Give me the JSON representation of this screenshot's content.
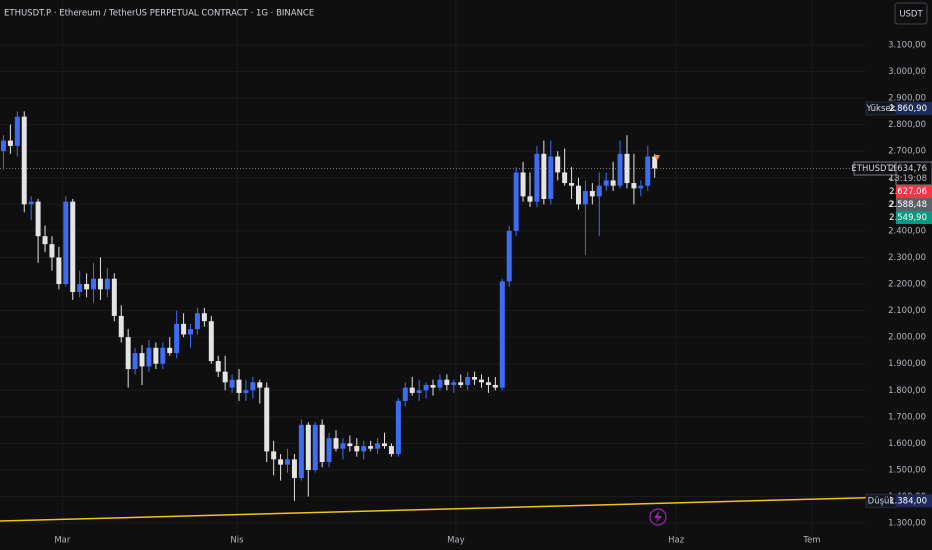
{
  "header": {
    "symbol_title": "ETHUSDT.P · Ethereum / TetherUS PERPETUAL CONTRACT · 1G · BINANCE",
    "currency_button": "USDT"
  },
  "chart_data": {
    "type": "candlestick",
    "up_color": "#3d6df2",
    "down_color": "#e4e4e4",
    "xlim": [
      -0.5,
      124.5
    ],
    "xticks": [
      {
        "value": 8.5,
        "label": "Mar"
      },
      {
        "value": 33.7,
        "label": "Nis"
      },
      {
        "value": 65.3,
        "label": "May"
      },
      {
        "value": 97.1,
        "label": "Haz"
      },
      {
        "value": 116.7,
        "label": "Tem"
      }
    ],
    "ylim": [
      1244,
      3269
    ],
    "yticks": [
      {
        "value": 1300,
        "label": "1.300,00"
      },
      {
        "value": 1400,
        "label": "1.400,00"
      },
      {
        "value": 1500,
        "label": "1.500,00"
      },
      {
        "value": 1600,
        "label": "1.600,00"
      },
      {
        "value": 1700,
        "label": "1.700,00"
      },
      {
        "value": 1800,
        "label": "1.800,00"
      },
      {
        "value": 1900,
        "label": "1.900,00"
      },
      {
        "value": 2000,
        "label": "2.000,00"
      },
      {
        "value": 2100,
        "label": "2.100,00"
      },
      {
        "value": 2200,
        "label": "2.200,00"
      },
      {
        "value": 2300,
        "label": "2.300,00"
      },
      {
        "value": 2400,
        "label": "2.400,00"
      },
      {
        "value": 2500,
        "label": "2.500,00"
      },
      {
        "value": 2600,
        "label": "2.600,00"
      },
      {
        "value": 2700,
        "label": "2.700,00"
      },
      {
        "value": 2800,
        "label": "2.800,00"
      },
      {
        "value": 2900,
        "label": "2.900,00"
      },
      {
        "value": 3000,
        "label": "3.000,00"
      },
      {
        "value": 3100,
        "label": "3.100,00"
      }
    ],
    "grid": true,
    "candles": [
      {
        "open": 2700,
        "high": 2760,
        "low": 2630,
        "close": 2740
      },
      {
        "open": 2740,
        "high": 2800,
        "low": 2690,
        "close": 2720
      },
      {
        "open": 2720,
        "high": 2850,
        "low": 2680,
        "close": 2830
      },
      {
        "open": 2830,
        "high": 2850,
        "low": 2470,
        "close": 2500
      },
      {
        "open": 2500,
        "high": 2530,
        "low": 2440,
        "close": 2510
      },
      {
        "open": 2510,
        "high": 2520,
        "low": 2280,
        "close": 2380
      },
      {
        "open": 2380,
        "high": 2420,
        "low": 2320,
        "close": 2350
      },
      {
        "open": 2350,
        "high": 2380,
        "low": 2250,
        "close": 2300
      },
      {
        "open": 2300,
        "high": 2340,
        "low": 2180,
        "close": 2200
      },
      {
        "open": 2200,
        "high": 2530,
        "low": 2190,
        "close": 2510
      },
      {
        "open": 2510,
        "high": 2520,
        "low": 2140,
        "close": 2170
      },
      {
        "open": 2170,
        "high": 2250,
        "low": 2150,
        "close": 2200
      },
      {
        "open": 2200,
        "high": 2240,
        "low": 2150,
        "close": 2180
      },
      {
        "open": 2180,
        "high": 2280,
        "low": 2130,
        "close": 2220
      },
      {
        "open": 2220,
        "high": 2300,
        "low": 2140,
        "close": 2180
      },
      {
        "open": 2180,
        "high": 2260,
        "low": 2150,
        "close": 2220
      },
      {
        "open": 2220,
        "high": 2240,
        "low": 2060,
        "close": 2080
      },
      {
        "open": 2080,
        "high": 2120,
        "low": 1980,
        "close": 2000
      },
      {
        "open": 2000,
        "high": 2030,
        "low": 1810,
        "close": 1880
      },
      {
        "open": 1880,
        "high": 1960,
        "low": 1860,
        "close": 1940
      },
      {
        "open": 1940,
        "high": 1970,
        "low": 1820,
        "close": 1890
      },
      {
        "open": 1890,
        "high": 1990,
        "low": 1870,
        "close": 1960
      },
      {
        "open": 1960,
        "high": 1980,
        "low": 1880,
        "close": 1900
      },
      {
        "open": 1900,
        "high": 1980,
        "low": 1880,
        "close": 1960
      },
      {
        "open": 1960,
        "high": 2000,
        "low": 1930,
        "close": 1940
      },
      {
        "open": 1940,
        "high": 2100,
        "low": 1920,
        "close": 2050
      },
      {
        "open": 2050,
        "high": 2090,
        "low": 2000,
        "close": 2010
      },
      {
        "open": 2010,
        "high": 2050,
        "low": 1960,
        "close": 2030
      },
      {
        "open": 2030,
        "high": 2110,
        "low": 2010,
        "close": 2090
      },
      {
        "open": 2090,
        "high": 2110,
        "low": 2040,
        "close": 2060
      },
      {
        "open": 2060,
        "high": 2080,
        "low": 1900,
        "close": 1910
      },
      {
        "open": 1910,
        "high": 1930,
        "low": 1850,
        "close": 1870
      },
      {
        "open": 1870,
        "high": 1930,
        "low": 1800,
        "close": 1830
      },
      {
        "open": 1810,
        "high": 1860,
        "low": 1790,
        "close": 1840
      },
      {
        "open": 1840,
        "high": 1880,
        "low": 1760,
        "close": 1790
      },
      {
        "open": 1790,
        "high": 1840,
        "low": 1760,
        "close": 1800
      },
      {
        "open": 1800,
        "high": 1850,
        "low": 1770,
        "close": 1830
      },
      {
        "open": 1830,
        "high": 1840,
        "low": 1750,
        "close": 1810
      },
      {
        "open": 1810,
        "high": 1830,
        "low": 1530,
        "close": 1570
      },
      {
        "open": 1570,
        "high": 1610,
        "low": 1480,
        "close": 1540
      },
      {
        "open": 1540,
        "high": 1560,
        "low": 1460,
        "close": 1520
      },
      {
        "open": 1520,
        "high": 1580,
        "low": 1490,
        "close": 1540
      },
      {
        "open": 1540,
        "high": 1560,
        "low": 1384,
        "close": 1470
      },
      {
        "open": 1470,
        "high": 1690,
        "low": 1460,
        "close": 1670
      },
      {
        "open": 1670,
        "high": 1680,
        "low": 1400,
        "close": 1500
      },
      {
        "open": 1500,
        "high": 1680,
        "low": 1490,
        "close": 1670
      },
      {
        "open": 1670,
        "high": 1690,
        "low": 1510,
        "close": 1530
      },
      {
        "open": 1530,
        "high": 1640,
        "low": 1510,
        "close": 1620
      },
      {
        "open": 1620,
        "high": 1650,
        "low": 1570,
        "close": 1580
      },
      {
        "open": 1580,
        "high": 1620,
        "low": 1540,
        "close": 1600
      },
      {
        "open": 1600,
        "high": 1630,
        "low": 1570,
        "close": 1590
      },
      {
        "open": 1590,
        "high": 1620,
        "low": 1550,
        "close": 1570
      },
      {
        "open": 1570,
        "high": 1610,
        "low": 1540,
        "close": 1590
      },
      {
        "open": 1590,
        "high": 1610,
        "low": 1570,
        "close": 1580
      },
      {
        "open": 1580,
        "high": 1620,
        "low": 1560,
        "close": 1600
      },
      {
        "open": 1600,
        "high": 1640,
        "low": 1580,
        "close": 1590
      },
      {
        "open": 1590,
        "high": 1600,
        "low": 1550,
        "close": 1560
      },
      {
        "open": 1560,
        "high": 1770,
        "low": 1550,
        "close": 1760
      },
      {
        "open": 1760,
        "high": 1830,
        "low": 1740,
        "close": 1810
      },
      {
        "open": 1810,
        "high": 1850,
        "low": 1780,
        "close": 1790
      },
      {
        "open": 1790,
        "high": 1840,
        "low": 1760,
        "close": 1800
      },
      {
        "open": 1800,
        "high": 1830,
        "low": 1770,
        "close": 1820
      },
      {
        "open": 1820,
        "high": 1840,
        "low": 1780,
        "close": 1810
      },
      {
        "open": 1810,
        "high": 1860,
        "low": 1800,
        "close": 1840
      },
      {
        "open": 1840,
        "high": 1860,
        "low": 1800,
        "close": 1820
      },
      {
        "open": 1820,
        "high": 1840,
        "low": 1790,
        "close": 1830
      },
      {
        "open": 1830,
        "high": 1860,
        "low": 1810,
        "close": 1820
      },
      {
        "open": 1820,
        "high": 1870,
        "low": 1800,
        "close": 1850
      },
      {
        "open": 1850,
        "high": 1870,
        "low": 1820,
        "close": 1840
      },
      {
        "open": 1840,
        "high": 1860,
        "low": 1810,
        "close": 1830
      },
      {
        "open": 1830,
        "high": 1850,
        "low": 1790,
        "close": 1820
      },
      {
        "open": 1820,
        "high": 1850,
        "low": 1800,
        "close": 1810
      },
      {
        "open": 1810,
        "high": 2220,
        "low": 1800,
        "close": 2210
      },
      {
        "open": 2210,
        "high": 2420,
        "low": 2190,
        "close": 2400
      },
      {
        "open": 2400,
        "high": 2640,
        "low": 2380,
        "close": 2620
      },
      {
        "open": 2620,
        "high": 2660,
        "low": 2510,
        "close": 2530
      },
      {
        "open": 2530,
        "high": 2620,
        "low": 2490,
        "close": 2510
      },
      {
        "open": 2510,
        "high": 2720,
        "low": 2490,
        "close": 2690
      },
      {
        "open": 2690,
        "high": 2740,
        "low": 2500,
        "close": 2520
      },
      {
        "open": 2520,
        "high": 2740,
        "low": 2500,
        "close": 2680
      },
      {
        "open": 2680,
        "high": 2700,
        "low": 2590,
        "close": 2620
      },
      {
        "open": 2620,
        "high": 2710,
        "low": 2570,
        "close": 2580
      },
      {
        "open": 2580,
        "high": 2640,
        "low": 2520,
        "close": 2570
      },
      {
        "open": 2570,
        "high": 2600,
        "low": 2480,
        "close": 2500
      },
      {
        "open": 2500,
        "high": 2590,
        "low": 2310,
        "close": 2550
      },
      {
        "open": 2550,
        "high": 2580,
        "low": 2500,
        "close": 2530
      },
      {
        "open": 2530,
        "high": 2620,
        "low": 2380,
        "close": 2570
      },
      {
        "open": 2570,
        "high": 2620,
        "low": 2550,
        "close": 2590
      },
      {
        "open": 2590,
        "high": 2660,
        "low": 2550,
        "close": 2570
      },
      {
        "open": 2570,
        "high": 2740,
        "low": 2560,
        "close": 2690
      },
      {
        "open": 2690,
        "high": 2760,
        "low": 2560,
        "close": 2580
      },
      {
        "open": 2580,
        "high": 2690,
        "low": 2500,
        "close": 2560
      },
      {
        "open": 2560,
        "high": 2590,
        "low": 2530,
        "close": 2570
      },
      {
        "open": 2570,
        "high": 2720,
        "low": 2550,
        "close": 2680
      },
      {
        "open": 2680,
        "high": 2690,
        "low": 2600,
        "close": 2634.76
      }
    ],
    "last_price": {
      "name": "ETHUSDT.P",
      "value": 2634.76,
      "label": "2.634,76",
      "countdown": "13:19:08"
    },
    "price_levels": [
      {
        "value": 2627.06,
        "label": "2.627,06",
        "color": "#f23645"
      },
      {
        "value": 2588.48,
        "label": "2.588,48",
        "color": "#5d606b"
      },
      {
        "value": 2549.9,
        "label": "2.549,90",
        "color": "#089981"
      }
    ],
    "high_marker": {
      "name": "Yüksek",
      "value": 2860.9,
      "label": "2.860,90"
    },
    "low_marker": {
      "name": "Düşük",
      "value": 1384,
      "label": "1.384,00"
    }
  }
}
